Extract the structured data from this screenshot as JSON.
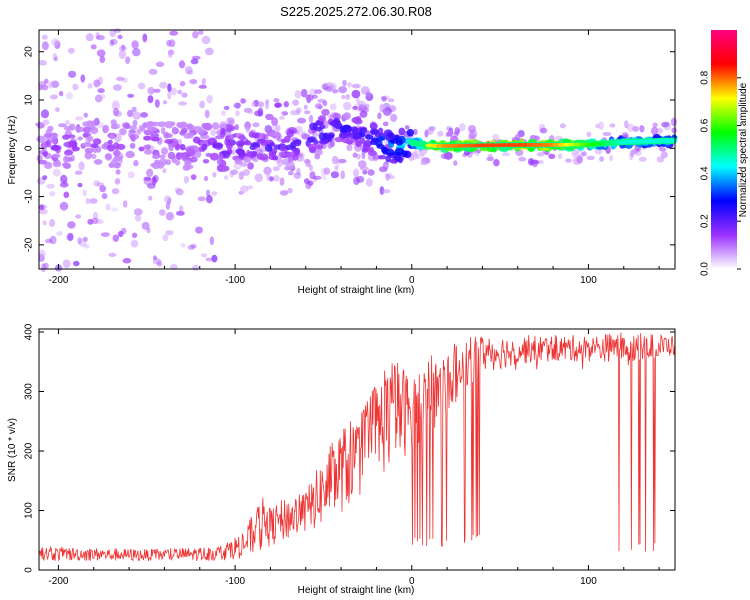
{
  "title": "S225.2025.272.06.30.R08",
  "chart_data": [
    {
      "type": "heatmap",
      "xlabel": "Height of straight line (km)",
      "ylabel": "Frequency (Hz)",
      "xlim": [
        -211,
        149
      ],
      "ylim": [
        -25,
        24.5
      ],
      "xticks": [
        -200,
        -100,
        0,
        100
      ],
      "yticks": [
        20,
        10,
        0,
        -10,
        -20
      ],
      "colorbar": {
        "label": "Normalized spectral amplitude",
        "range": [
          0.0,
          1.0
        ],
        "ticks": [
          0.0,
          0.2,
          0.4,
          0.6,
          0.8
        ],
        "colors": [
          "#ffffff",
          "#9b30ff",
          "#0000ff",
          "#00ffff",
          "#00ff00",
          "#ffff00",
          "#ff0000",
          "#ff0080"
        ]
      },
      "ridge": {
        "x": [
          -210,
          -180,
          -150,
          -120,
          -100,
          -85,
          -70,
          -60,
          -50,
          -40,
          -30,
          -20,
          -15,
          -10,
          0,
          5,
          10,
          15,
          20,
          40,
          60,
          80,
          100,
          120,
          140,
          149
        ],
        "freq": [
          0.5,
          0.8,
          1.0,
          0.5,
          0.0,
          0.0,
          0.5,
          1.8,
          3.5,
          4.2,
          3.0,
          1.5,
          0.5,
          0.0,
          1.2,
          0.8,
          0.6,
          0.5,
          0.5,
          0.6,
          0.7,
          0.7,
          0.8,
          1.3,
          1.5,
          1.6
        ],
        "amplitude": [
          0.12,
          0.12,
          0.12,
          0.13,
          0.2,
          0.2,
          0.2,
          0.25,
          0.28,
          0.25,
          0.2,
          0.32,
          0.35,
          0.35,
          0.45,
          0.55,
          0.7,
          0.75,
          0.78,
          0.82,
          0.82,
          0.78,
          0.6,
          0.45,
          0.45,
          0.45
        ]
      }
    },
    {
      "type": "line",
      "xlabel": "Height of straight line (km)",
      "ylabel": "SNR (10 * v/v)",
      "xlim": [
        -211,
        149
      ],
      "ylim": [
        0,
        405
      ],
      "xticks": [
        -200,
        -100,
        0,
        100
      ],
      "yticks": [
        0,
        100,
        200,
        300,
        400
      ],
      "color": "#ee3333",
      "envelope": {
        "x": [
          -211,
          -150,
          -110,
          -95,
          -85,
          -80,
          -70,
          -60,
          -50,
          -40,
          -30,
          -20,
          -10,
          0,
          10,
          20,
          30,
          40,
          60,
          80,
          100,
          120,
          149
        ],
        "upper": [
          40,
          35,
          40,
          65,
          125,
          105,
          125,
          135,
          190,
          240,
          260,
          320,
          360,
          330,
          360,
          375,
          390,
          395,
          395,
          395,
          395,
          400,
          395
        ],
        "baseline": [
          15,
          15,
          15,
          20,
          30,
          40,
          50,
          60,
          75,
          95,
          120,
          150,
          175,
          200,
          230,
          260,
          300,
          330,
          345,
          350,
          350,
          350,
          360
        ]
      },
      "dropouts": [
        {
          "x_from": 0,
          "x_to": 20,
          "min": 40
        },
        {
          "x_from": 25,
          "x_to": 40,
          "min": 45
        },
        {
          "x_from": 115,
          "x_to": 140,
          "min": 30
        }
      ]
    }
  ]
}
